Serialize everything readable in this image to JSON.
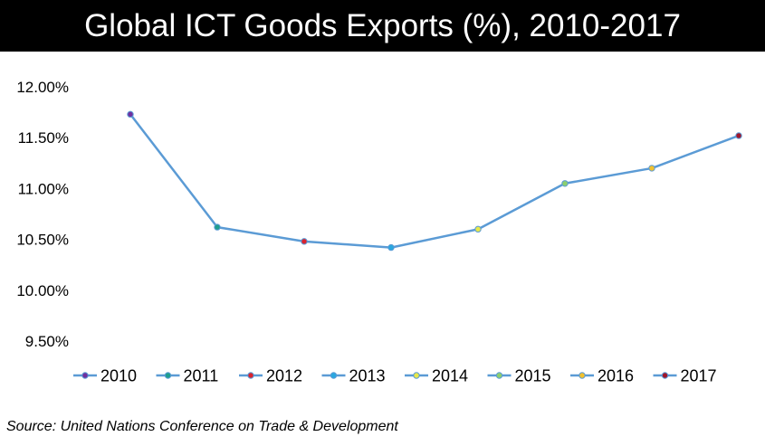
{
  "header": {
    "title": "Global ICT Goods Exports (%), 2010-2017"
  },
  "source": "Source: United Nations Conference on Trade & Development",
  "colors": {
    "line": "#5b9bd5",
    "title_bg": "#000000"
  },
  "chart_data": {
    "type": "line",
    "title": "Global ICT Goods Exports (%), 2010-2017",
    "xlabel": "",
    "ylabel": "",
    "ylim": [
      9.5,
      12.0
    ],
    "yticks": [
      9.5,
      10.0,
      10.5,
      11.0,
      11.5,
      12.0
    ],
    "ytick_labels": [
      "9.50%",
      "10.00%",
      "10.50%",
      "11.00%",
      "11.50%",
      "12.00%"
    ],
    "grid": false,
    "legend_position": "bottom",
    "categories": [
      "2010",
      "2011",
      "2012",
      "2013",
      "2014",
      "2015",
      "2016",
      "2017"
    ],
    "values": [
      11.73,
      10.62,
      10.48,
      10.42,
      10.6,
      11.05,
      11.2,
      11.52
    ],
    "series": [
      {
        "name": "2010",
        "value": 11.73,
        "marker_color": "#7030a0"
      },
      {
        "name": "2011",
        "value": 10.62,
        "marker_color": "#1e9e8e"
      },
      {
        "name": "2012",
        "value": 10.48,
        "marker_color": "#d9232e"
      },
      {
        "name": "2013",
        "value": 10.42,
        "marker_color": "#29a8e0"
      },
      {
        "name": "2014",
        "value": 10.6,
        "marker_color": "#e8e84a"
      },
      {
        "name": "2015",
        "value": 11.05,
        "marker_color": "#8ccf6e"
      },
      {
        "name": "2016",
        "value": 11.2,
        "marker_color": "#f2c12e"
      },
      {
        "name": "2017",
        "value": 11.52,
        "marker_color": "#a0162b"
      }
    ]
  }
}
